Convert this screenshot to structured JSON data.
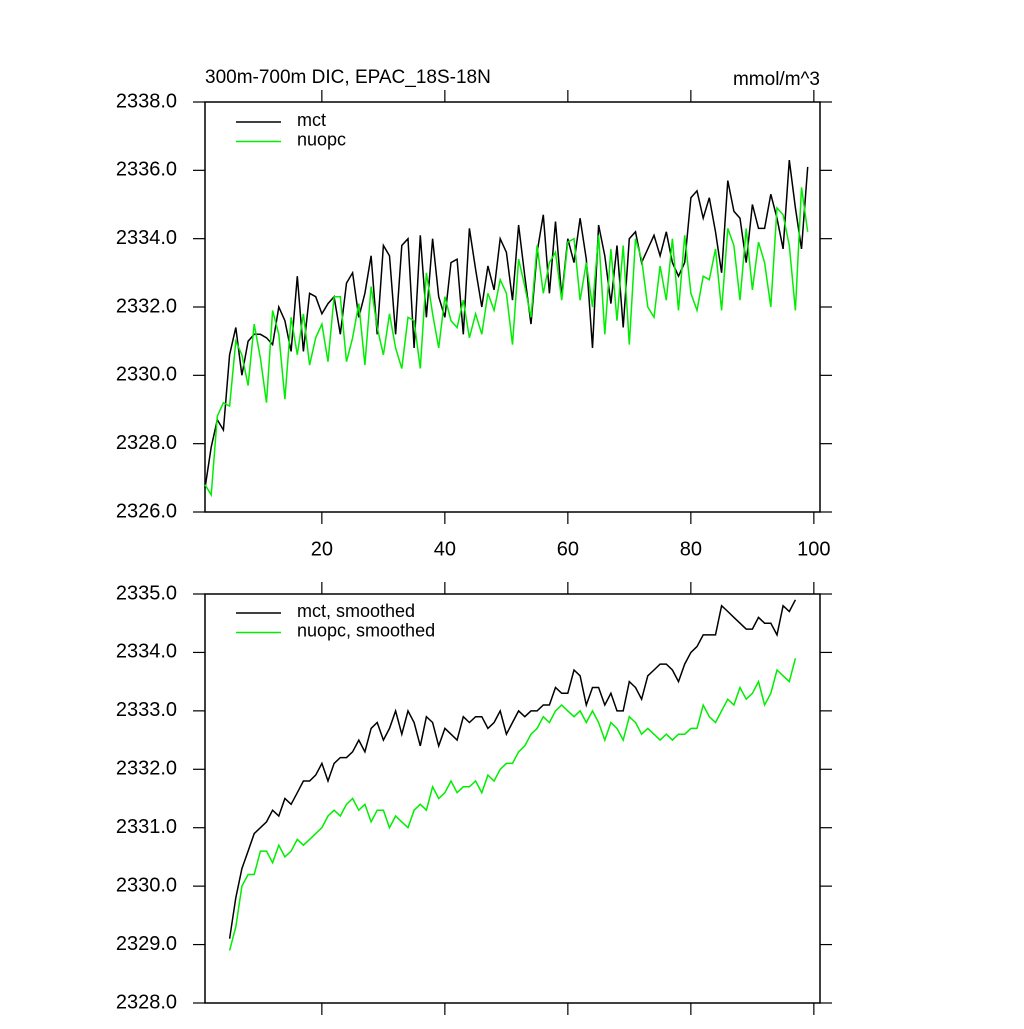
{
  "chart_data": [
    {
      "type": "line",
      "title": "300m-700m DIC, EPAC_18S-18N",
      "units": "mmol/m^3",
      "xlim": [
        1,
        101
      ],
      "xticks": [
        20,
        40,
        60,
        80,
        100
      ],
      "show_xtick_labels": true,
      "ylim": [
        2326,
        2338
      ],
      "yticks": [
        {
          "value": 2326,
          "label": "2326.0"
        },
        {
          "value": 2328,
          "label": "2328.0"
        },
        {
          "value": 2330,
          "label": "2330.0"
        },
        {
          "value": 2332,
          "label": "2332.0"
        },
        {
          "value": 2334,
          "label": "2334.0"
        },
        {
          "value": 2336,
          "label": "2336.0"
        },
        {
          "value": 2338,
          "label": "2338.0"
        }
      ],
      "x": [
        1,
        2,
        3,
        4,
        5,
        6,
        7,
        8,
        9,
        10,
        11,
        12,
        13,
        14,
        15,
        16,
        17,
        18,
        19,
        20,
        21,
        22,
        23,
        24,
        25,
        26,
        27,
        28,
        29,
        30,
        31,
        32,
        33,
        34,
        35,
        36,
        37,
        38,
        39,
        40,
        41,
        42,
        43,
        44,
        45,
        46,
        47,
        48,
        49,
        50,
        51,
        52,
        53,
        54,
        55,
        56,
        57,
        58,
        59,
        60,
        61,
        62,
        63,
        64,
        65,
        66,
        67,
        68,
        69,
        70,
        71,
        72,
        73,
        74,
        75,
        76,
        77,
        78,
        79,
        80,
        81,
        82,
        83,
        84,
        85,
        86,
        87,
        88,
        89,
        90,
        91,
        92,
        93,
        94,
        95,
        96,
        97,
        98,
        99
      ],
      "series": [
        {
          "name": "mct",
          "color": "#000000",
          "values": [
            2326.7,
            2327.9,
            2328.7,
            2328.4,
            2330.6,
            2331.4,
            2330.0,
            2331.0,
            2331.2,
            2331.2,
            2331.1,
            2330.9,
            2332.0,
            2331.6,
            2330.7,
            2332.9,
            2330.7,
            2332.4,
            2332.3,
            2331.8,
            2332.1,
            2332.3,
            2331.2,
            2332.7,
            2333.0,
            2331.7,
            2332.4,
            2333.5,
            2331.2,
            2333.8,
            2333.5,
            2331.2,
            2333.8,
            2334.0,
            2330.8,
            2334.1,
            2331.7,
            2334.0,
            2332.3,
            2331.7,
            2333.3,
            2333.4,
            2331.2,
            2334.3,
            2333.1,
            2332.0,
            2333.2,
            2332.5,
            2334.0,
            2333.6,
            2332.2,
            2334.4,
            2332.9,
            2331.5,
            2333.6,
            2334.7,
            2332.4,
            2334.5,
            2332.3,
            2334.0,
            2333.3,
            2334.6,
            2333.4,
            2330.8,
            2334.4,
            2333.5,
            2332.1,
            2333.8,
            2331.4,
            2334.0,
            2334.2,
            2333.3,
            2333.7,
            2334.1,
            2333.5,
            2334.2,
            2333.3,
            2332.9,
            2333.3,
            2335.2,
            2335.4,
            2334.6,
            2335.2,
            2334.2,
            2333.0,
            2335.7,
            2334.8,
            2334.6,
            2333.3,
            2335.0,
            2334.3,
            2334.3,
            2335.3,
            2334.6,
            2333.7,
            2336.3,
            2334.9,
            2333.7,
            2336.1
          ]
        },
        {
          "name": "nuopc",
          "color": "#00ee00",
          "values": [
            2326.8,
            2326.5,
            2328.8,
            2329.2,
            2329.1,
            2331.0,
            2330.6,
            2329.7,
            2331.5,
            2330.5,
            2329.2,
            2331.9,
            2331.2,
            2329.3,
            2331.7,
            2330.6,
            2331.8,
            2330.3,
            2331.1,
            2331.5,
            2330.4,
            2332.3,
            2332.3,
            2330.4,
            2331.1,
            2332.1,
            2330.3,
            2332.6,
            2331.4,
            2330.6,
            2331.8,
            2330.8,
            2330.2,
            2331.7,
            2331.6,
            2330.2,
            2333.0,
            2331.8,
            2330.8,
            2332.3,
            2331.6,
            2331.4,
            2332.2,
            2331.1,
            2331.8,
            2331.2,
            2332.4,
            2331.9,
            2332.8,
            2332.4,
            2330.9,
            2333.4,
            2332.6,
            2331.7,
            2333.8,
            2332.4,
            2333.3,
            2333.6,
            2332.2,
            2333.9,
            2334.0,
            2332.2,
            2333.3,
            2332.0,
            2334.1,
            2331.2,
            2333.7,
            2331.6,
            2333.8,
            2330.9,
            2334.0,
            2333.4,
            2332.0,
            2331.7,
            2333.2,
            2332.2,
            2334.0,
            2331.9,
            2334.1,
            2332.4,
            2331.9,
            2332.9,
            2332.8,
            2333.7,
            2331.9,
            2334.3,
            2333.8,
            2332.2,
            2334.3,
            2332.5,
            2333.9,
            2333.3,
            2332.0,
            2334.9,
            2334.7,
            2333.8,
            2331.9,
            2335.5,
            2334.2
          ]
        }
      ]
    },
    {
      "type": "line",
      "xlim": [
        1,
        101
      ],
      "xticks": [
        20,
        40,
        60,
        80,
        100
      ],
      "show_xtick_labels": false,
      "ylim": [
        2328,
        2335
      ],
      "yticks": [
        {
          "value": 2328,
          "label": "2328.0"
        },
        {
          "value": 2329,
          "label": "2329.0"
        },
        {
          "value": 2330,
          "label": "2330.0"
        },
        {
          "value": 2331,
          "label": "2331.0"
        },
        {
          "value": 2332,
          "label": "2332.0"
        },
        {
          "value": 2333,
          "label": "2333.0"
        },
        {
          "value": 2334,
          "label": "2334.0"
        },
        {
          "value": 2335,
          "label": "2335.0"
        }
      ],
      "x": [
        5,
        6,
        7,
        8,
        9,
        10,
        11,
        12,
        13,
        14,
        15,
        16,
        17,
        18,
        19,
        20,
        21,
        22,
        23,
        24,
        25,
        26,
        27,
        28,
        29,
        30,
        31,
        32,
        33,
        34,
        35,
        36,
        37,
        38,
        39,
        40,
        41,
        42,
        43,
        44,
        45,
        46,
        47,
        48,
        49,
        50,
        51,
        52,
        53,
        54,
        55,
        56,
        57,
        58,
        59,
        60,
        61,
        62,
        63,
        64,
        65,
        66,
        67,
        68,
        69,
        70,
        71,
        72,
        73,
        74,
        75,
        76,
        77,
        78,
        79,
        80,
        81,
        82,
        83,
        84,
        85,
        86,
        87,
        88,
        89,
        90,
        91,
        92,
        93,
        94,
        95,
        96,
        97
      ],
      "series": [
        {
          "name": "mct, smoothed",
          "color": "#000000",
          "values": [
            2329.1,
            2329.8,
            2330.3,
            2330.6,
            2330.9,
            2331.0,
            2331.1,
            2331.3,
            2331.2,
            2331.5,
            2331.4,
            2331.6,
            2331.8,
            2331.8,
            2331.9,
            2332.1,
            2331.8,
            2332.1,
            2332.2,
            2332.2,
            2332.3,
            2332.5,
            2332.3,
            2332.7,
            2332.8,
            2332.5,
            2332.7,
            2333.0,
            2332.6,
            2333.0,
            2332.8,
            2332.4,
            2332.9,
            2332.8,
            2332.4,
            2332.7,
            2332.6,
            2332.5,
            2332.9,
            2332.8,
            2332.9,
            2332.9,
            2332.7,
            2332.8,
            2333.0,
            2332.6,
            2332.8,
            2333.0,
            2332.9,
            2333.0,
            2333.0,
            2333.1,
            2333.1,
            2333.4,
            2333.3,
            2333.3,
            2333.7,
            2333.6,
            2333.1,
            2333.4,
            2333.4,
            2333.1,
            2333.3,
            2333.0,
            2333.0,
            2333.5,
            2333.4,
            2333.2,
            2333.6,
            2333.7,
            2333.8,
            2333.8,
            2333.7,
            2333.5,
            2333.8,
            2334.0,
            2334.1,
            2334.3,
            2334.3,
            2334.3,
            2334.8,
            2334.7,
            2334.6,
            2334.5,
            2334.4,
            2334.4,
            2334.6,
            2334.5,
            2334.5,
            2334.3,
            2334.8,
            2334.7,
            2334.9
          ]
        },
        {
          "name": "nuopc, smoothed",
          "color": "#00ee00",
          "values": [
            2328.9,
            2329.3,
            2330.0,
            2330.2,
            2330.2,
            2330.6,
            2330.6,
            2330.4,
            2330.7,
            2330.5,
            2330.6,
            2330.8,
            2330.7,
            2330.8,
            2330.9,
            2331.0,
            2331.2,
            2331.3,
            2331.2,
            2331.4,
            2331.5,
            2331.3,
            2331.4,
            2331.1,
            2331.3,
            2331.3,
            2331.0,
            2331.2,
            2331.1,
            2331.0,
            2331.3,
            2331.4,
            2331.3,
            2331.7,
            2331.5,
            2331.6,
            2331.8,
            2331.6,
            2331.7,
            2331.7,
            2331.8,
            2331.6,
            2331.9,
            2331.8,
            2332.0,
            2332.1,
            2332.1,
            2332.3,
            2332.4,
            2332.6,
            2332.7,
            2332.9,
            2332.8,
            2333.0,
            2333.1,
            2333.0,
            2332.9,
            2333.0,
            2332.8,
            2333.0,
            2332.8,
            2332.5,
            2332.8,
            2332.7,
            2332.5,
            2332.9,
            2332.8,
            2332.6,
            2332.7,
            2332.6,
            2332.5,
            2332.6,
            2332.5,
            2332.6,
            2332.6,
            2332.7,
            2332.7,
            2333.1,
            2332.9,
            2332.8,
            2333.0,
            2333.2,
            2333.1,
            2333.4,
            2333.2,
            2333.3,
            2333.5,
            2333.1,
            2333.3,
            2333.7,
            2333.6,
            2333.5,
            2333.9
          ]
        }
      ]
    }
  ]
}
